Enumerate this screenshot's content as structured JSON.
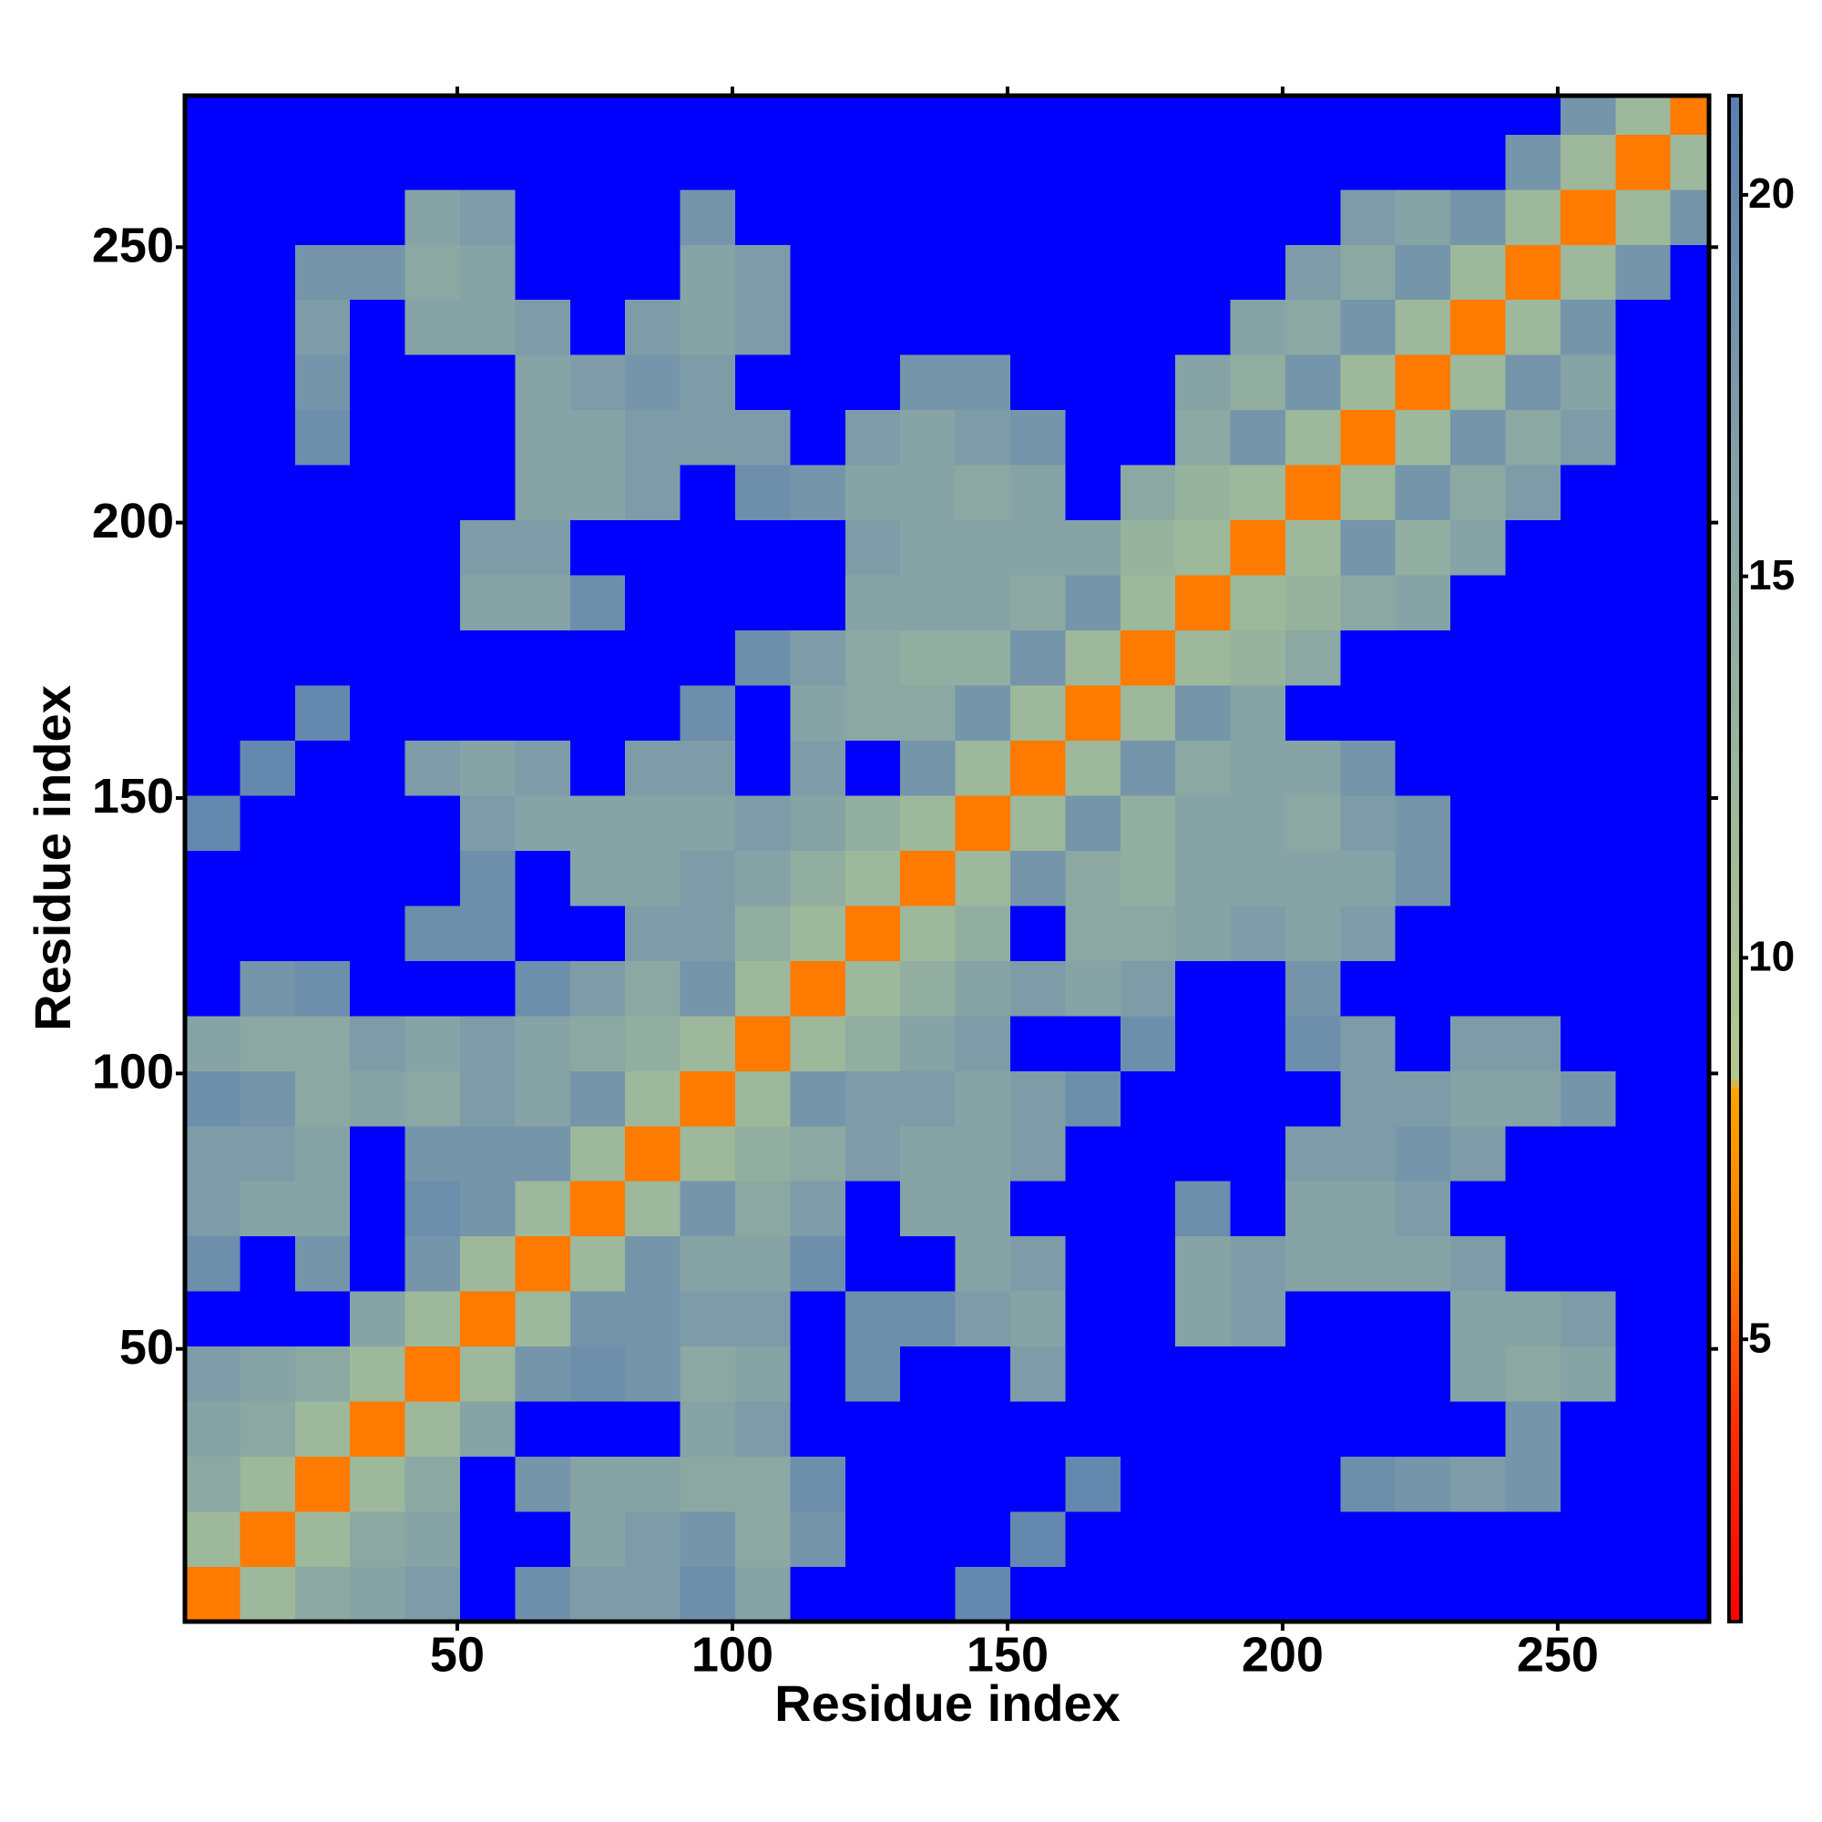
{
  "chart_data": {
    "type": "heatmap",
    "x_label": "Residue index",
    "y_label": "Residue index",
    "bins": [
      0.5,
      10.5,
      20.5,
      30.5,
      40.5,
      50.5,
      60.5,
      70.5,
      80.5,
      90.5,
      100.5,
      110.5,
      120.5,
      130.5,
      140.5,
      150.5,
      160.5,
      170.5,
      180.5,
      190.5,
      200.5,
      210.5,
      220.5,
      230.5,
      240.5,
      250.5,
      260.5,
      270.5,
      277.5
    ],
    "xlim": [
      0.5,
      277.5
    ],
    "ylim": [
      0.5,
      277.5
    ],
    "xticks": [
      50,
      100,
      150,
      200,
      250
    ],
    "yticks": [
      50,
      100,
      150,
      200,
      250
    ],
    "zlim": [
      1.3,
      21.3
    ],
    "zticks": [
      5,
      10,
      15,
      20
    ],
    "colorscale": [
      [
        1.3,
        "#ff0000"
      ],
      [
        4,
        "#ff3000"
      ],
      [
        6,
        "#ff7a00"
      ],
      [
        8.3,
        "#ffa500"
      ],
      [
        8.4,
        "#b5c78f"
      ],
      [
        12,
        "#9db89b"
      ],
      [
        16,
        "#86a3a6"
      ],
      [
        21.3,
        "#5a7fb0"
      ]
    ],
    "over_color": "#0000ff",
    "z": [
      [
        6,
        12,
        15,
        16,
        17,
        22,
        19,
        17,
        17,
        19,
        16,
        22,
        22,
        22,
        20,
        22,
        22,
        22,
        22,
        22,
        22,
        22,
        22,
        22,
        22,
        22,
        22,
        22
      ],
      [
        12,
        6,
        12,
        15,
        16,
        22,
        22,
        16,
        17,
        18,
        15,
        18,
        22,
        22,
        22,
        20,
        22,
        22,
        22,
        22,
        22,
        22,
        22,
        22,
        22,
        22,
        22,
        22
      ],
      [
        15,
        12,
        6,
        12,
        15,
        22,
        18,
        16,
        16,
        15,
        15,
        19,
        22,
        22,
        22,
        22,
        20,
        22,
        22,
        22,
        22,
        19,
        18,
        17,
        18,
        22,
        22,
        22
      ],
      [
        16,
        15,
        12,
        6,
        12,
        16,
        22,
        22,
        22,
        16,
        17,
        22,
        22,
        22,
        22,
        22,
        22,
        22,
        22,
        22,
        22,
        22,
        22,
        22,
        18,
        22,
        22,
        22
      ],
      [
        17,
        16,
        15,
        12,
        6,
        12,
        18,
        19,
        18,
        15,
        16,
        22,
        19,
        22,
        22,
        17,
        22,
        22,
        22,
        22,
        22,
        22,
        22,
        16,
        15,
        16,
        22,
        22
      ],
      [
        22,
        22,
        22,
        16,
        12,
        6,
        12,
        18,
        18,
        17,
        17,
        22,
        19,
        19,
        17,
        16,
        22,
        22,
        16,
        17,
        22,
        22,
        22,
        16,
        16,
        17,
        22,
        22
      ],
      [
        19,
        22,
        18,
        22,
        18,
        12,
        6,
        12,
        18,
        16,
        16,
        19,
        22,
        22,
        16,
        17,
        22,
        22,
        16,
        17,
        16,
        16,
        16,
        17,
        22,
        22,
        22,
        22
      ],
      [
        17,
        16,
        16,
        22,
        19,
        18,
        12,
        6,
        12,
        18,
        15,
        17,
        22,
        16,
        16,
        22,
        22,
        22,
        19,
        22,
        16,
        16,
        17,
        22,
        22,
        22,
        22,
        22
      ],
      [
        17,
        17,
        16,
        22,
        18,
        18,
        18,
        12,
        6,
        12,
        14,
        15,
        17,
        16,
        16,
        17,
        22,
        22,
        22,
        22,
        17,
        17,
        18,
        17,
        22,
        22,
        22,
        22
      ],
      [
        19,
        18,
        15,
        16,
        15,
        17,
        16,
        18,
        12,
        6,
        12,
        18,
        17,
        17,
        16,
        17,
        19,
        22,
        22,
        22,
        22,
        17,
        17,
        16,
        16,
        18,
        22,
        22
      ],
      [
        16,
        15,
        15,
        17,
        16,
        17,
        16,
        15,
        14,
        12,
        6,
        12,
        14,
        16,
        17,
        22,
        22,
        19,
        22,
        22,
        19,
        17,
        22,
        17,
        17,
        22,
        22,
        22
      ],
      [
        22,
        18,
        19,
        22,
        22,
        22,
        19,
        17,
        15,
        18,
        12,
        6,
        12,
        14,
        16,
        17,
        16,
        17,
        22,
        22,
        18,
        22,
        22,
        22,
        22,
        22,
        22,
        22
      ],
      [
        22,
        22,
        22,
        22,
        19,
        19,
        22,
        22,
        17,
        17,
        14,
        12,
        6,
        12,
        14,
        22,
        15,
        15,
        16,
        17,
        16,
        17,
        22,
        22,
        22,
        22,
        22,
        22
      ],
      [
        22,
        22,
        22,
        22,
        22,
        19,
        22,
        16,
        16,
        17,
        16,
        14,
        12,
        6,
        12,
        18,
        15,
        14,
        16,
        16,
        16,
        16,
        18,
        22,
        22,
        22,
        22,
        22
      ],
      [
        20,
        22,
        22,
        22,
        22,
        17,
        16,
        16,
        16,
        16,
        17,
        16,
        14,
        12,
        6,
        12,
        18,
        14,
        16,
        16,
        15,
        17,
        18,
        22,
        22,
        22,
        22,
        22
      ],
      [
        22,
        20,
        22,
        22,
        17,
        16,
        17,
        22,
        17,
        17,
        22,
        17,
        22,
        18,
        12,
        6,
        12,
        18,
        15,
        16,
        16,
        18,
        22,
        22,
        22,
        22,
        22,
        22
      ],
      [
        22,
        22,
        20,
        22,
        22,
        22,
        22,
        22,
        22,
        19,
        22,
        16,
        15,
        15,
        18,
        12,
        6,
        12,
        18,
        16,
        22,
        22,
        22,
        22,
        22,
        22,
        22,
        22
      ],
      [
        22,
        22,
        22,
        22,
        22,
        22,
        22,
        22,
        22,
        22,
        19,
        17,
        15,
        14,
        14,
        18,
        12,
        6,
        12,
        13,
        15,
        22,
        22,
        22,
        22,
        22,
        22,
        22
      ],
      [
        22,
        22,
        22,
        22,
        22,
        16,
        16,
        19,
        22,
        22,
        22,
        22,
        16,
        16,
        16,
        15,
        18,
        12,
        6,
        12,
        13,
        15,
        16,
        22,
        22,
        22,
        22,
        22
      ],
      [
        22,
        22,
        22,
        22,
        22,
        17,
        17,
        22,
        22,
        22,
        22,
        22,
        17,
        16,
        16,
        16,
        16,
        13,
        12,
        6,
        12,
        18,
        14,
        16,
        22,
        22,
        22,
        22
      ],
      [
        22,
        22,
        22,
        22,
        22,
        22,
        16,
        16,
        17,
        22,
        19,
        18,
        16,
        16,
        15,
        16,
        22,
        15,
        13,
        12,
        6,
        12,
        18,
        15,
        17,
        22,
        22,
        22
      ],
      [
        22,
        22,
        19,
        22,
        22,
        22,
        16,
        16,
        17,
        17,
        17,
        22,
        17,
        16,
        17,
        18,
        22,
        22,
        15,
        18,
        12,
        6,
        12,
        18,
        15,
        17,
        22,
        22
      ],
      [
        22,
        22,
        18,
        22,
        22,
        22,
        16,
        17,
        18,
        17,
        22,
        22,
        22,
        18,
        18,
        22,
        22,
        22,
        16,
        14,
        18,
        12,
        6,
        12,
        18,
        16,
        22,
        22
      ],
      [
        22,
        22,
        17,
        22,
        16,
        16,
        17,
        22,
        17,
        16,
        17,
        22,
        22,
        22,
        22,
        22,
        22,
        22,
        22,
        16,
        15,
        18,
        12,
        6,
        12,
        18,
        22,
        22
      ],
      [
        22,
        22,
        18,
        18,
        15,
        16,
        22,
        22,
        22,
        16,
        17,
        22,
        22,
        22,
        22,
        22,
        22,
        22,
        22,
        22,
        17,
        15,
        18,
        12,
        6,
        12,
        18,
        22
      ],
      [
        22,
        22,
        22,
        22,
        16,
        17,
        22,
        22,
        22,
        18,
        22,
        22,
        22,
        22,
        22,
        22,
        22,
        22,
        22,
        22,
        22,
        17,
        16,
        18,
        12,
        6,
        12,
        18
      ],
      [
        22,
        22,
        22,
        22,
        22,
        22,
        22,
        22,
        22,
        22,
        22,
        22,
        22,
        22,
        22,
        22,
        22,
        22,
        22,
        22,
        22,
        22,
        22,
        22,
        18,
        12,
        6,
        12
      ],
      [
        22,
        22,
        22,
        22,
        22,
        22,
        22,
        22,
        22,
        22,
        22,
        22,
        22,
        22,
        22,
        22,
        22,
        22,
        22,
        22,
        22,
        22,
        22,
        22,
        22,
        18,
        12,
        6
      ]
    ]
  }
}
